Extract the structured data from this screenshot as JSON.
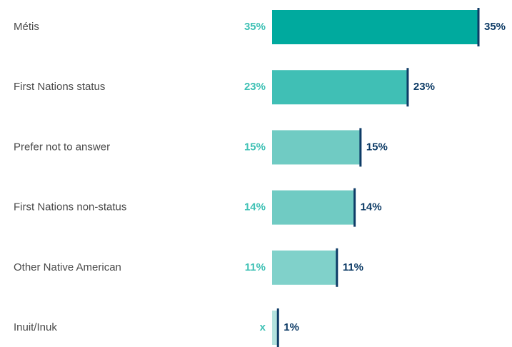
{
  "chart_data": {
    "type": "bar",
    "orientation": "horizontal",
    "categories": [
      "Métis",
      "First Nations status",
      "Prefer not to answer",
      "First Nations non-status",
      "Other Native American",
      "Inuit/Inuk"
    ],
    "series": [
      {
        "colors": [
          "#00aa9e",
          "#40bfb5",
          "#70cbc3",
          "#70cbc3",
          "#80d1ca",
          "#b3e2dd"
        ],
        "values": [
          35,
          23,
          15,
          14,
          11,
          1
        ],
        "value_labels": [
          "35%",
          "23%",
          "15%",
          "14%",
          "11%",
          "x"
        ]
      },
      {
        "color": "#0d3b66",
        "marker": "line",
        "values": [
          35,
          23,
          15,
          14,
          11,
          1
        ],
        "value_labels": [
          "35%",
          "23%",
          "15%",
          "14%",
          "11%",
          "1%"
        ]
      }
    ],
    "xlim": [
      0,
      35
    ]
  }
}
